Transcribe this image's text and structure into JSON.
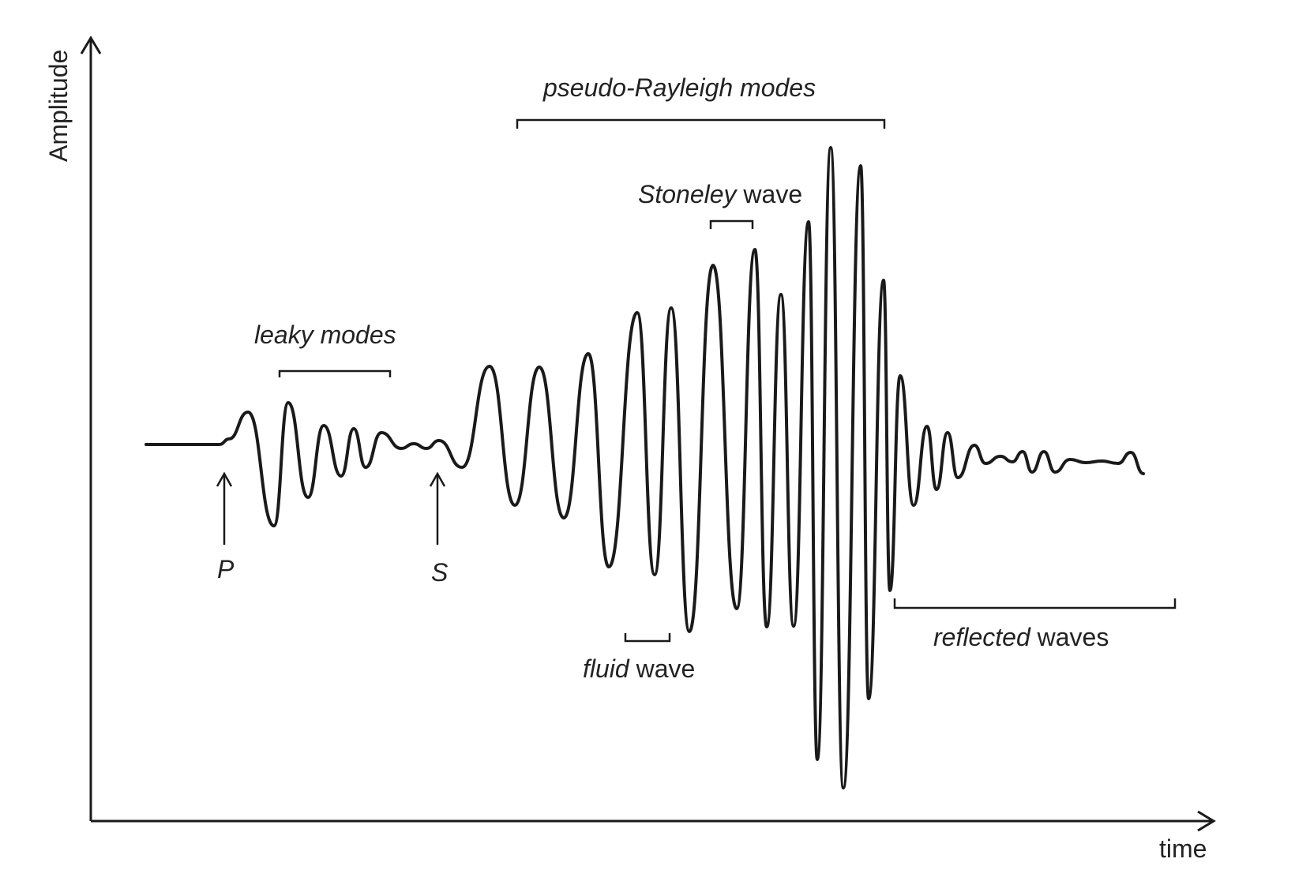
{
  "axes": {
    "y_label": "Amplitude",
    "x_label": "time"
  },
  "annotations": {
    "pseudo_rayleigh": "pseudo-Rayleigh modes",
    "stoneley": {
      "italic": "Stoneley",
      "plain": " wave"
    },
    "leaky": "leaky modes",
    "fluid": {
      "italic": "fluid",
      "plain": " wave"
    },
    "reflected": {
      "italic": "reflected",
      "plain": " waves"
    },
    "p_arrival": "P",
    "s_arrival": "S"
  },
  "colors": {
    "ink": "#1a1a1a",
    "background": "#ffffff"
  }
}
